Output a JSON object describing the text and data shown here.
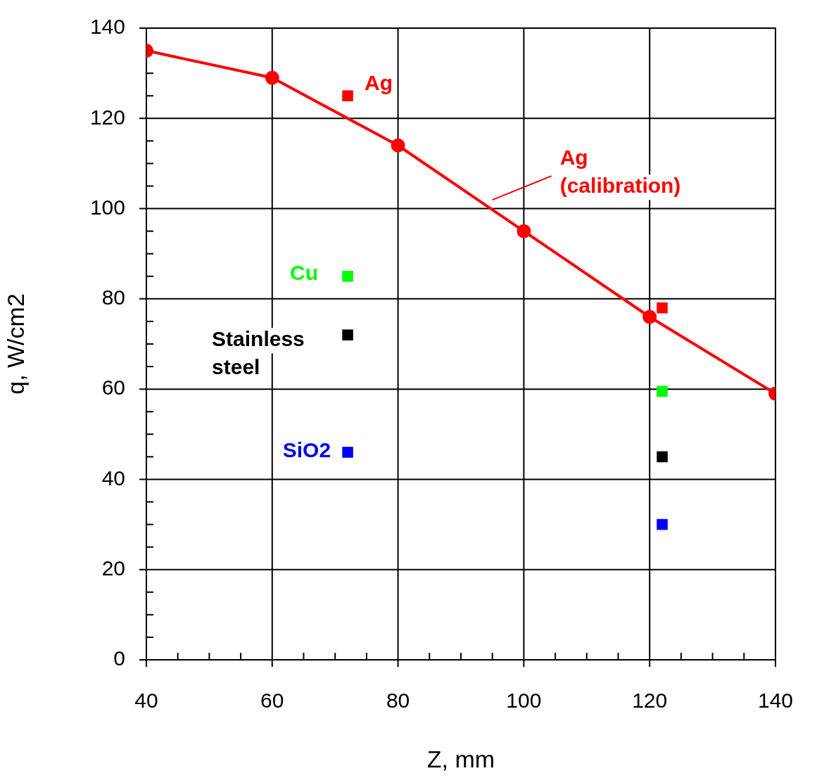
{
  "chart_data": {
    "type": "scatter",
    "xlabel": "Z, mm",
    "ylabel": "q, W/cm2",
    "xlim": [
      40,
      140
    ],
    "ylim": [
      0,
      140
    ],
    "xticks": [
      40,
      {
        "value": 45,
        "label": null
      },
      {
        "value": 50,
        "label": null
      },
      {
        "value": 55,
        "label": null
      },
      60,
      {
        "value": 65,
        "label": null
      },
      {
        "value": 70,
        "label": null
      },
      {
        "value": 75,
        "label": null
      },
      80,
      {
        "value": 85,
        "label": null
      },
      {
        "value": 90,
        "label": null
      },
      {
        "value": 95,
        "label": null
      },
      100,
      {
        "value": 105,
        "label": null
      },
      {
        "value": 110,
        "label": null
      },
      {
        "value": 115,
        "label": null
      },
      120,
      {
        "value": 125,
        "label": null
      },
      {
        "value": 130,
        "label": null
      },
      {
        "value": 135,
        "label": null
      },
      140
    ],
    "yticks": [
      0,
      {
        "value": 5,
        "label": null
      },
      {
        "value": 10,
        "label": null
      },
      {
        "value": 15,
        "label": null
      },
      20,
      {
        "value": 25,
        "label": null
      },
      {
        "value": 30,
        "label": null
      },
      {
        "value": 35,
        "label": null
      },
      40,
      {
        "value": 45,
        "label": null
      },
      {
        "value": 50,
        "label": null
      },
      {
        "value": 55,
        "label": null
      },
      60,
      {
        "value": 65,
        "label": null
      },
      {
        "value": 70,
        "label": null
      },
      {
        "value": 75,
        "label": null
      },
      80,
      {
        "value": 85,
        "label": null
      },
      {
        "value": 90,
        "label": null
      },
      {
        "value": 95,
        "label": null
      },
      100,
      {
        "value": 105,
        "label": null
      },
      {
        "value": 110,
        "label": null
      },
      {
        "value": 115,
        "label": null
      },
      120,
      {
        "value": 125,
        "label": null
      },
      {
        "value": 130,
        "label": null
      },
      {
        "value": 135,
        "label": null
      },
      140
    ],
    "grid": true,
    "legend": false,
    "series": [
      {
        "name": "Ag (calibration)",
        "type": "line",
        "marker": "circle",
        "color": "#ff0000",
        "x": [
          40,
          60,
          80,
          100,
          120,
          140
        ],
        "values": [
          135,
          129,
          114,
          95,
          76,
          59
        ]
      },
      {
        "name": "Ag",
        "marker": "square",
        "color": "#ff0000",
        "x": [
          72,
          122
        ],
        "values": [
          125,
          78
        ]
      },
      {
        "name": "Cu",
        "marker": "square",
        "color": "#00ff00",
        "x": [
          72,
          122
        ],
        "values": [
          85,
          59.5
        ]
      },
      {
        "name": "Stainless steel",
        "marker": "square",
        "color": "#000000",
        "x": [
          72,
          122
        ],
        "values": [
          72,
          45
        ]
      },
      {
        "name": "SiO2",
        "marker": "square",
        "color": "#0000ff",
        "x": [
          72,
          122
        ],
        "values": [
          46,
          30
        ]
      }
    ]
  }
}
